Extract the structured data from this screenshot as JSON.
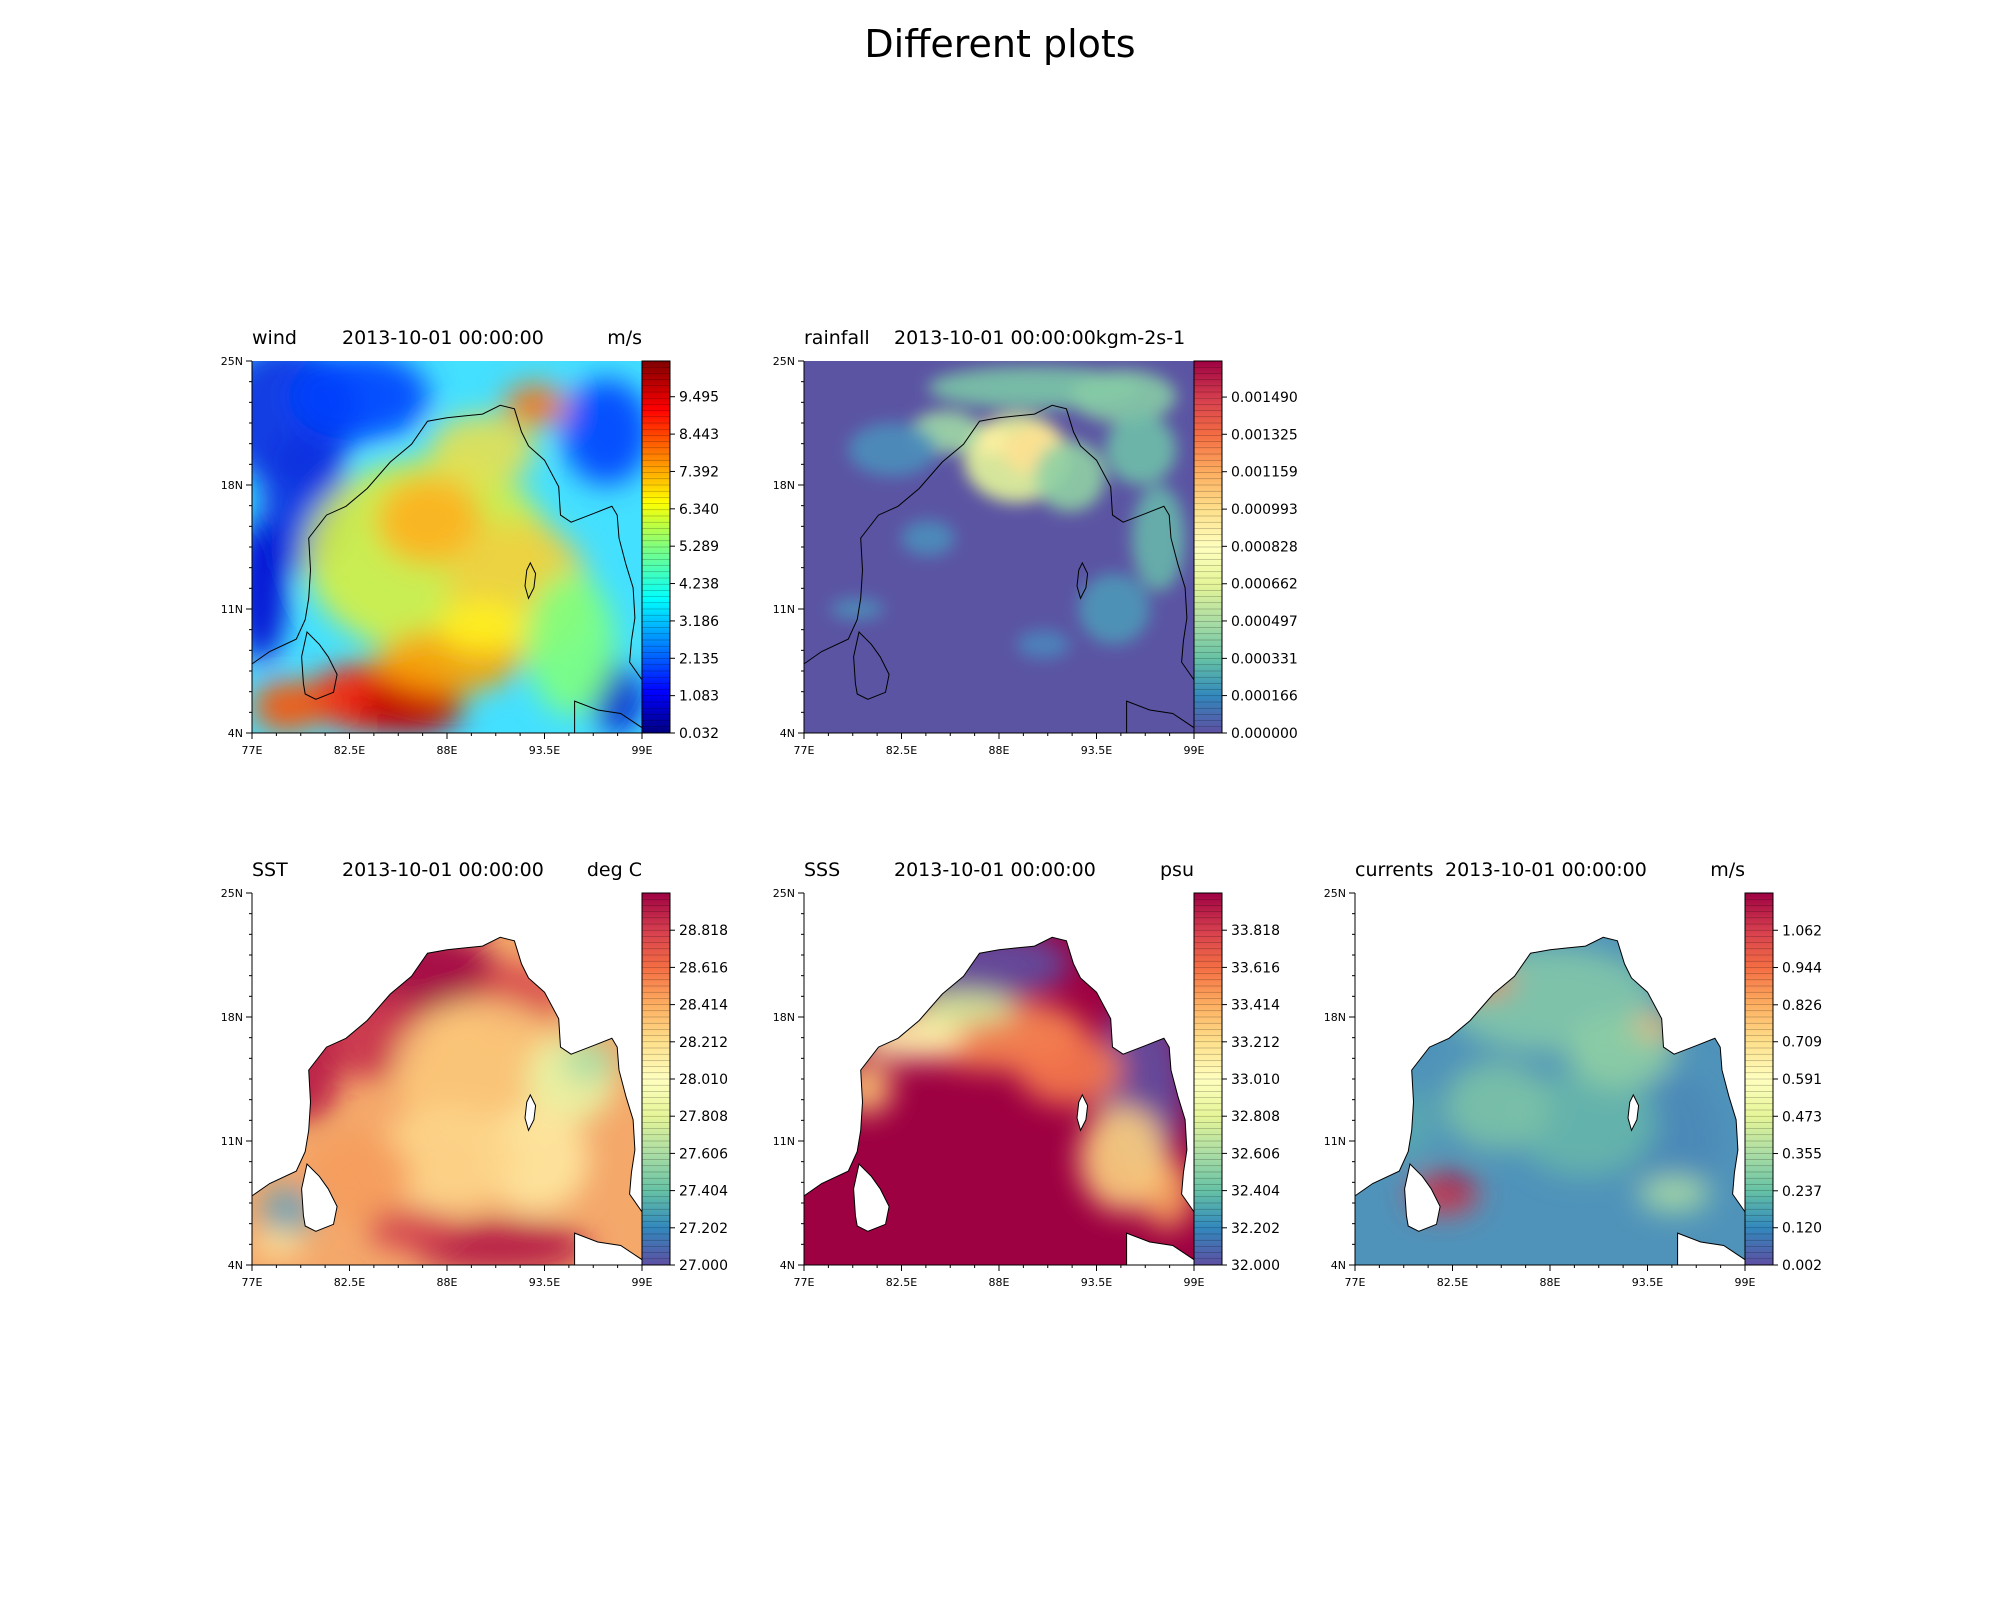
{
  "figure": {
    "title": "Different plots"
  },
  "chart_data": [
    {
      "type": "heatmap",
      "id": "wind",
      "left_title": "wind",
      "center_title": "2013-10-01 00:00:00",
      "right_title": "m/s",
      "x_ticks": [
        "77E",
        "82.5E",
        "88E",
        "93.5E",
        "99E"
      ],
      "y_ticks": [
        "4N",
        "11N",
        "18N",
        "25N"
      ],
      "xlim": [
        77,
        99
      ],
      "ylim": [
        4,
        25
      ],
      "colormap": "jet",
      "colorbar_labels": [
        "0.032",
        "1.083",
        "2.135",
        "3.186",
        "4.238",
        "5.289",
        "6.340",
        "7.392",
        "8.443",
        "9.495"
      ],
      "colorbar_range": [
        0.032,
        10.5
      ],
      "mask_land": false
    },
    {
      "type": "heatmap",
      "id": "rainfall",
      "left_title": "rainfall",
      "center_title": "2013-10-01 00:00:00kgm-2s-1",
      "right_title": "",
      "x_ticks": [
        "77E",
        "82.5E",
        "88E",
        "93.5E",
        "99E"
      ],
      "y_ticks": [
        "4N",
        "11N",
        "18N",
        "25N"
      ],
      "xlim": [
        77,
        99
      ],
      "ylim": [
        4,
        25
      ],
      "colormap": "Spectral_r",
      "colorbar_labels": [
        "0.000000",
        "0.000166",
        "0.000331",
        "0.000497",
        "0.000662",
        "0.000828",
        "0.000993",
        "0.001159",
        "0.001325",
        "0.001490"
      ],
      "colorbar_range": [
        0.0,
        0.00165
      ],
      "mask_land": false
    },
    {
      "type": "heatmap",
      "id": "sst",
      "left_title": "SST",
      "center_title": "2013-10-01 00:00:00",
      "right_title": "deg C",
      "x_ticks": [
        "77E",
        "82.5E",
        "88E",
        "93.5E",
        "99E"
      ],
      "y_ticks": [
        "4N",
        "11N",
        "18N",
        "25N"
      ],
      "xlim": [
        77,
        99
      ],
      "ylim": [
        4,
        25
      ],
      "colormap": "Spectral_r",
      "colorbar_labels": [
        "27.000",
        "27.202",
        "27.404",
        "27.606",
        "27.808",
        "28.010",
        "28.212",
        "28.414",
        "28.616",
        "28.818"
      ],
      "colorbar_range": [
        27.0,
        29.02
      ],
      "mask_land": true
    },
    {
      "type": "heatmap",
      "id": "sss",
      "left_title": "SSS",
      "center_title": "2013-10-01 00:00:00",
      "right_title": "psu",
      "x_ticks": [
        "77E",
        "82.5E",
        "88E",
        "93.5E",
        "99E"
      ],
      "y_ticks": [
        "4N",
        "11N",
        "18N",
        "25N"
      ],
      "xlim": [
        77,
        99
      ],
      "ylim": [
        4,
        25
      ],
      "colormap": "Spectral_r",
      "colorbar_labels": [
        "32.000",
        "32.202",
        "32.404",
        "32.606",
        "32.808",
        "33.010",
        "33.212",
        "33.414",
        "33.616",
        "33.818"
      ],
      "colorbar_range": [
        32.0,
        34.02
      ],
      "mask_land": true
    },
    {
      "type": "heatmap",
      "id": "currents",
      "left_title": "currents",
      "center_title": "2013-10-01 00:00:00",
      "right_title": "m/s",
      "x_ticks": [
        "77E",
        "82.5E",
        "88E",
        "93.5E",
        "99E"
      ],
      "y_ticks": [
        "4N",
        "11N",
        "18N",
        "25N"
      ],
      "xlim": [
        77,
        99
      ],
      "ylim": [
        4,
        25
      ],
      "colormap": "Spectral_r",
      "colorbar_labels": [
        "0.002",
        "0.120",
        "0.237",
        "0.355",
        "0.473",
        "0.591",
        "0.709",
        "0.826",
        "0.944",
        "1.062"
      ],
      "colorbar_range": [
        0.002,
        1.18
      ],
      "mask_land": true
    }
  ]
}
